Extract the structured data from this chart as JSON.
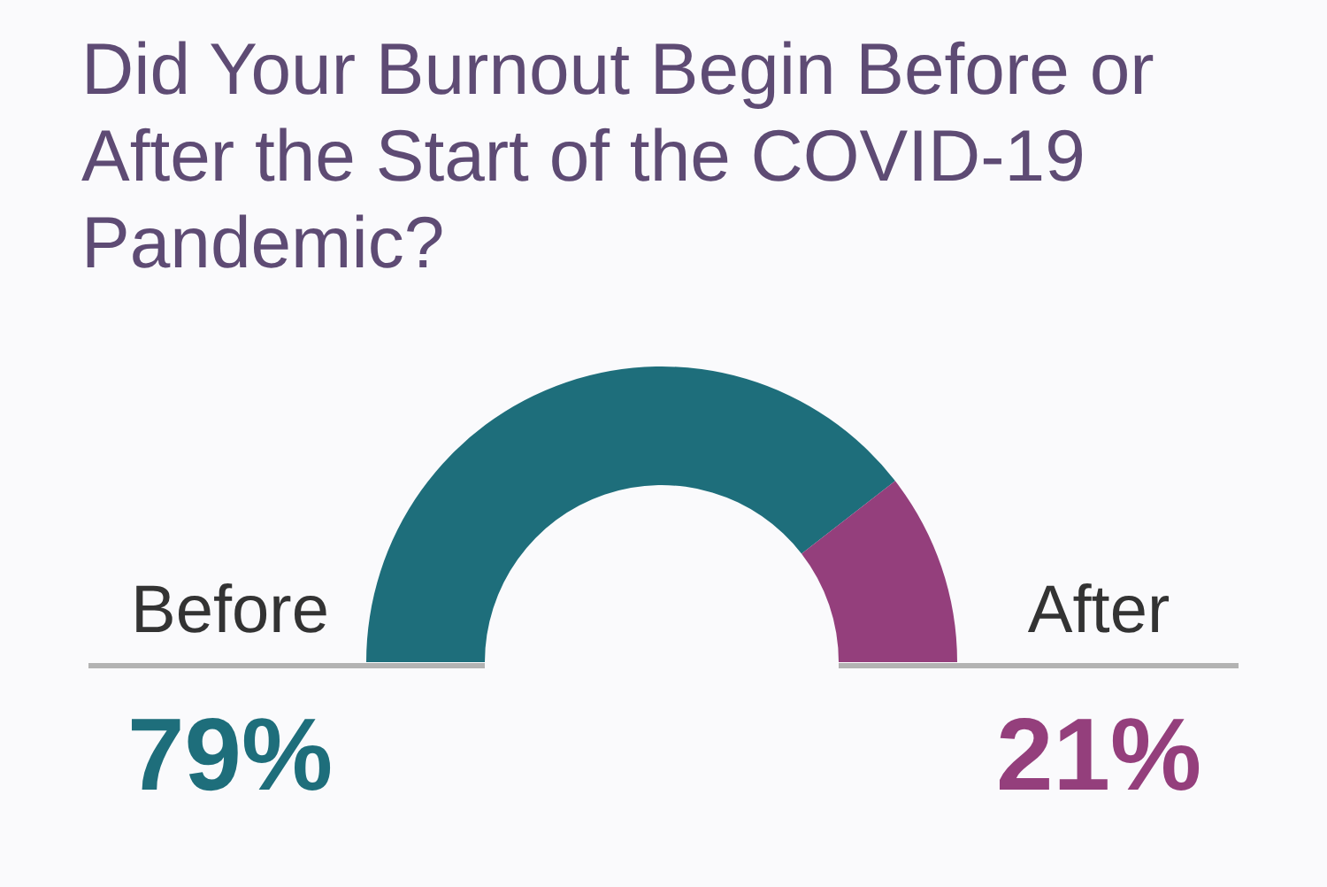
{
  "chart_data": {
    "type": "donut",
    "title": "Did Your Burnout Begin Before or After the Start of the COVID-19 Pandemic?",
    "categories": [
      "Before",
      "After"
    ],
    "values": [
      79,
      21
    ],
    "colors": [
      "#1e6e7b",
      "#943f7c"
    ],
    "value_labels": [
      "79%",
      "21%"
    ]
  }
}
